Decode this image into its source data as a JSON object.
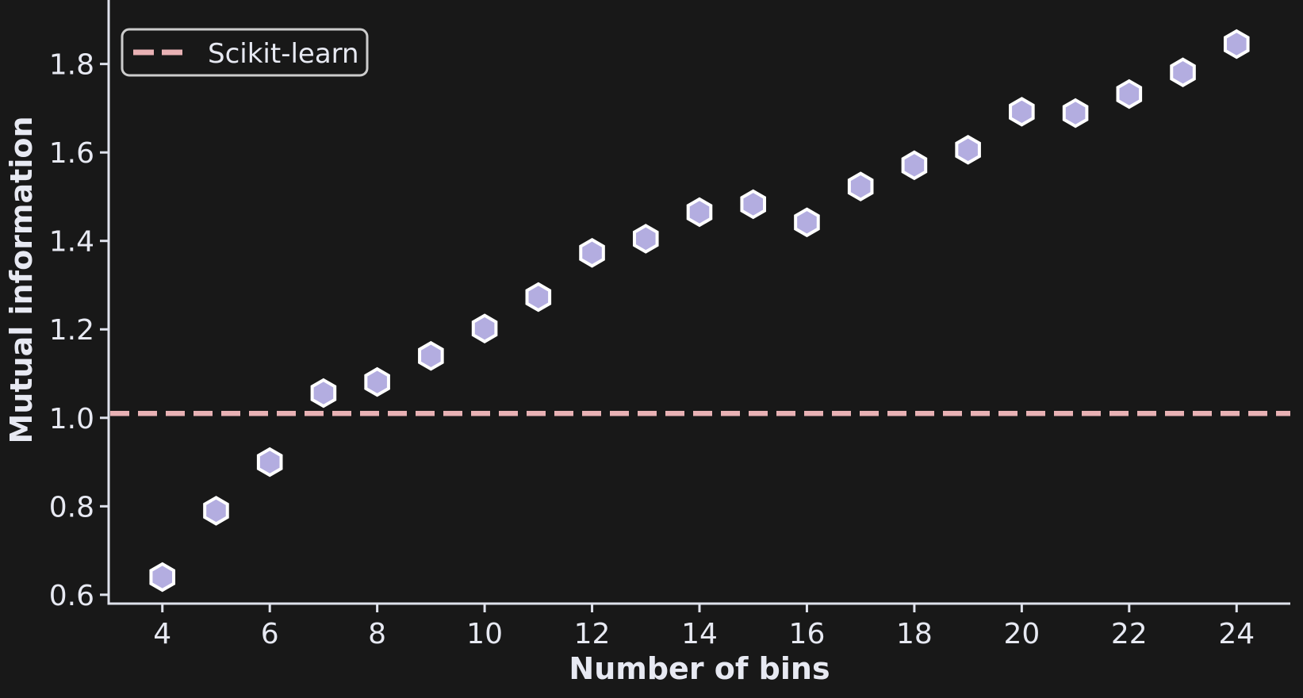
{
  "chart_data": {
    "type": "scatter",
    "title": "",
    "xlabel": "Number of bins",
    "ylabel": "Mutual information",
    "marker": "hexagon",
    "x": [
      4,
      5,
      6,
      7,
      8,
      9,
      10,
      11,
      12,
      13,
      14,
      15,
      16,
      17,
      18,
      19,
      20,
      21,
      22,
      23,
      24
    ],
    "y": [
      0.64,
      0.79,
      0.9,
      1.056,
      1.081,
      1.14,
      1.202,
      1.273,
      1.373,
      1.405,
      1.465,
      1.483,
      1.442,
      1.523,
      1.571,
      1.606,
      1.692,
      1.689,
      1.732,
      1.781,
      1.845
    ],
    "reference_line": {
      "label": "Scikit-learn",
      "value": 1.01,
      "style": "dashed"
    },
    "xticks": [
      4,
      6,
      8,
      10,
      12,
      14,
      16,
      18,
      20,
      22,
      24
    ],
    "yticks": [
      0.6,
      0.8,
      1.0,
      1.2,
      1.4,
      1.6,
      1.8
    ],
    "xlim": [
      3,
      25
    ],
    "ylim": [
      0.58,
      1.95
    ],
    "grid": false,
    "legend": {
      "position": "upper left",
      "entries": [
        "Scikit-learn"
      ]
    },
    "colors": {
      "background": "#181818",
      "foreground": "#e7e9f2",
      "spine": "#dfe2ec",
      "marker_fill": "#b3ade0",
      "marker_edge": "#ffffff",
      "reference_line": "#e8b1b4",
      "legend_border": "#cccccc"
    }
  }
}
